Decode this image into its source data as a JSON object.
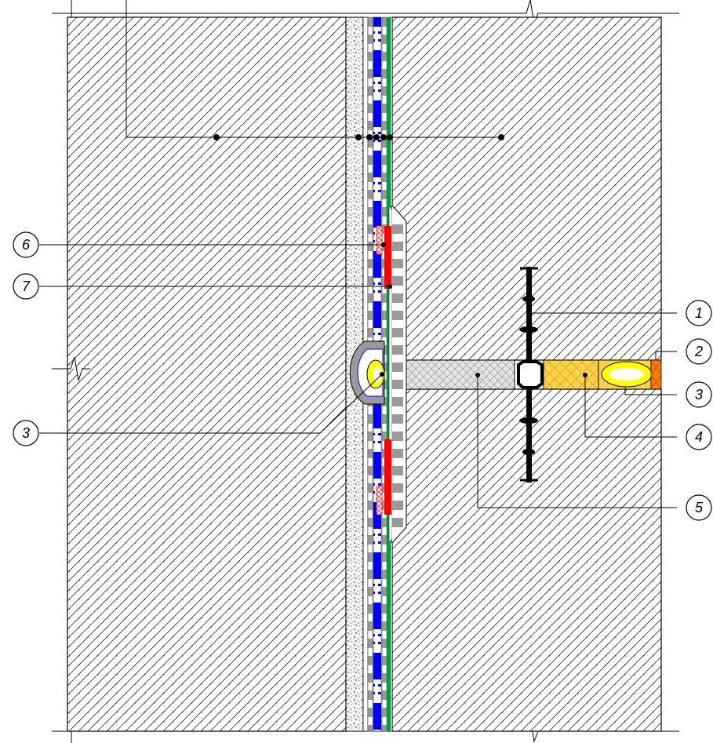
{
  "callouts": [
    {
      "id": "c1",
      "number": "1"
    },
    {
      "id": "c2",
      "number": "2"
    },
    {
      "id": "c3a",
      "number": "3"
    },
    {
      "id": "c4",
      "number": "4"
    },
    {
      "id": "c5",
      "number": "5"
    },
    {
      "id": "c6",
      "number": "6"
    },
    {
      "id": "c7",
      "number": "7"
    },
    {
      "id": "c3b",
      "number": "3"
    }
  ],
  "colors": {
    "hatch": "#000000",
    "gravel": "#e8e8e8",
    "membrane_blue": "#0000ff",
    "membrane_red": "#ff0000",
    "membrane_green": "#00a040",
    "grey_layer": "#9a9a9a",
    "sealant_yellow": "#ffff00",
    "filler_orange": "#ffa500",
    "board_grey": "#d8d8d8",
    "waterstop_black": "#000000"
  },
  "icons": {
    "waterstop": "waterstop-profile-icon",
    "break_mark": "break-line-icon"
  }
}
